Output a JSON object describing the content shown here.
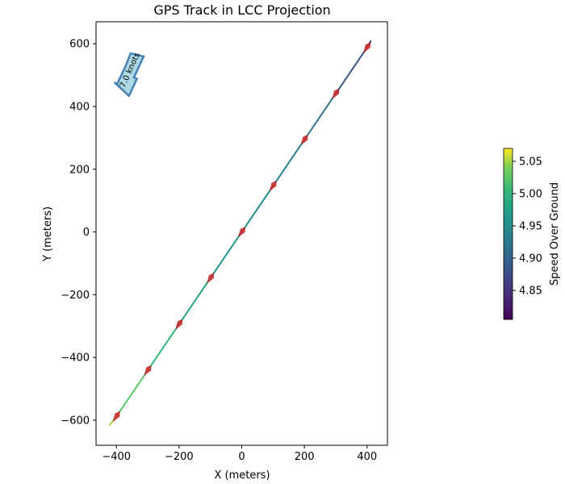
{
  "chart_data": {
    "type": "line",
    "title": "GPS Track in LCC Projection",
    "xlabel": "X (meters)",
    "ylabel": "Y (meters)",
    "xlim": [
      -465,
      465
    ],
    "ylim": [
      -680,
      670
    ],
    "xticks": [
      -400,
      -200,
      0,
      200,
      400
    ],
    "yticks": [
      -600,
      -400,
      -200,
      0,
      200,
      400,
      600
    ],
    "x_tick_labels": [
      "−400",
      "−200",
      "0",
      "200",
      "400"
    ],
    "y_tick_labels": [
      "−600",
      "−400",
      "−200",
      "0",
      "200",
      "400",
      "600"
    ],
    "grid": false,
    "track": {
      "x": [
        -422,
        -400,
        -300,
        -200,
        -100,
        0,
        100,
        200,
        300,
        400,
        412
      ],
      "y": [
        -616,
        -588,
        -441,
        -294,
        -147,
        0,
        147,
        294,
        441,
        588,
        608
      ],
      "speed": [
        5.06,
        5.04,
        5.01,
        4.99,
        4.97,
        4.96,
        4.94,
        4.93,
        4.91,
        4.86,
        4.84
      ]
    },
    "markers": {
      "x": [
        -400,
        -300,
        -200,
        -100,
        0,
        100,
        200,
        300,
        400
      ],
      "y": [
        -588,
        -441,
        -294,
        -147,
        0,
        147,
        294,
        441,
        588
      ],
      "color": "#d62728"
    },
    "colorbar": {
      "label": "Speed Over Ground",
      "min": 4.805,
      "max": 5.07,
      "ticks": [
        4.85,
        4.9,
        4.95,
        5.0,
        5.05
      ],
      "tick_labels": [
        "4.85",
        "4.90",
        "4.95",
        "5.00",
        "5.05"
      ],
      "colormap": "viridis"
    },
    "annotation": {
      "text": "7.0 knots",
      "fill_color": "#add8e6",
      "edge_color": "#4682b4"
    }
  }
}
